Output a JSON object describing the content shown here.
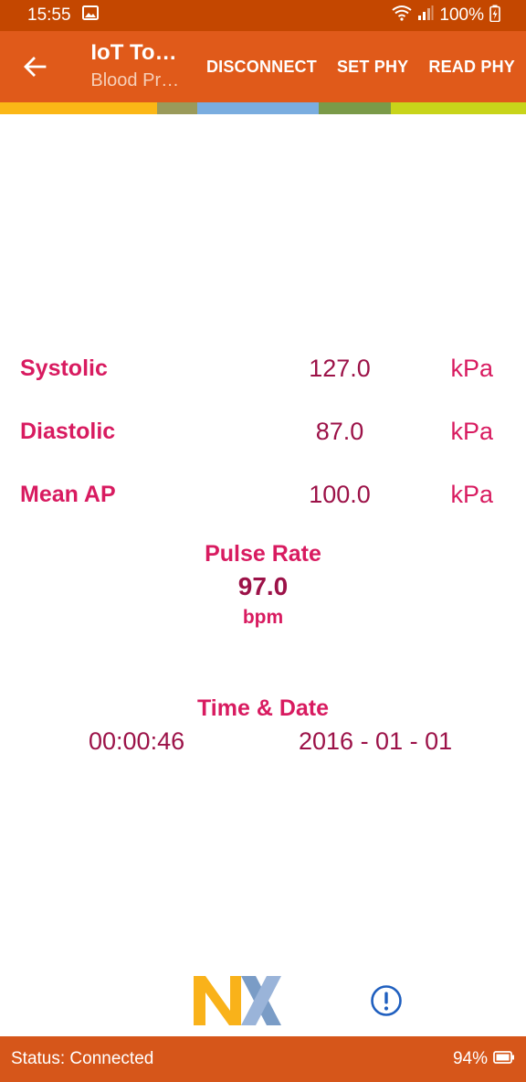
{
  "status_bar": {
    "time": "15:55",
    "battery": "100%"
  },
  "app_bar": {
    "title": "IoT To…",
    "subtitle": "Blood Pr…",
    "actions": [
      "DISCONNECT",
      "SET PHY",
      "READ PHY"
    ]
  },
  "color_strip": [
    "#fbb716",
    "#9a9a5a",
    "#7aaddf",
    "#7a9a48",
    "#c8d41a"
  ],
  "measurements": [
    {
      "label": "Systolic",
      "value": "127.0",
      "unit": "kPa"
    },
    {
      "label": "Diastolic",
      "value": "87.0",
      "unit": "kPa"
    },
    {
      "label": "Mean AP",
      "value": "100.0",
      "unit": "kPa"
    }
  ],
  "pulse": {
    "title": "Pulse Rate",
    "value": "97.0",
    "unit": "bpm"
  },
  "timestamp": {
    "title": "Time & Date",
    "time": "00:00:46",
    "date": "2016 - 01 - 01"
  },
  "footer": {
    "status": "Status: Connected",
    "battery": "94%"
  },
  "colors": {
    "status_bar": "#c44700",
    "app_bar": "#e05a1a",
    "accent_pink": "#d81b60",
    "value_dark": "#9c1248",
    "footer": "#d6561a"
  },
  "icons": {
    "back": "arrow-left-icon",
    "info": "info-icon",
    "logo": "nxp-logo"
  }
}
